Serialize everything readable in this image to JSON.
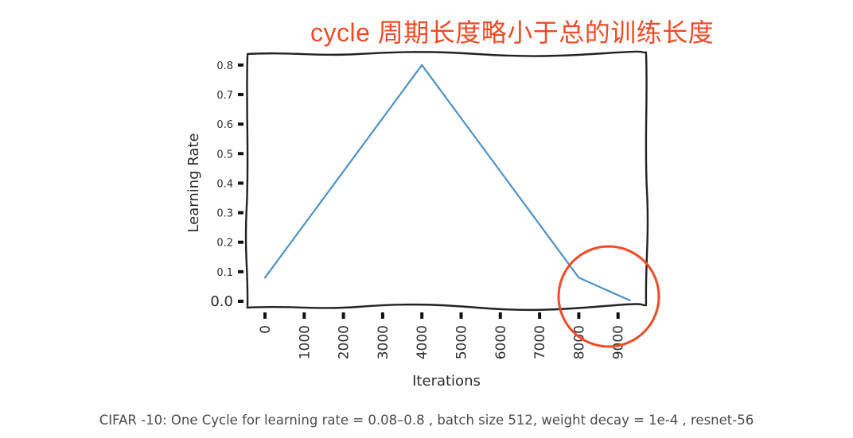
{
  "annotation": {
    "title": "cycle 周期长度略小于总的训练长度",
    "color": "#ee4b26",
    "highlight": "tail-end annealing region (8000–9300 iterations)"
  },
  "caption": "CIFAR -10: One Cycle for learning rate = 0.08–0.8 , batch size 512, weight decay = 1e-4 , resnet-56",
  "chart_data": {
    "type": "line",
    "title": "",
    "xlabel": "Iterations",
    "ylabel": "Learning Rate",
    "xlim": [
      -200,
      9500
    ],
    "ylim": [
      0.0,
      0.8
    ],
    "grid": false,
    "legend": null,
    "x_ticks": [
      0,
      1000,
      2000,
      3000,
      4000,
      5000,
      6000,
      7000,
      8000,
      9000
    ],
    "x_tick_labels": [
      "0",
      "1000",
      "2000",
      "3000",
      "4000",
      "5000",
      "6000",
      "7000",
      "8000",
      "9000"
    ],
    "y_ticks": [
      0.0,
      0.1,
      0.2,
      0.3,
      0.4,
      0.5,
      0.6,
      0.7,
      0.8
    ],
    "y_tick_labels": [
      "0.0",
      "0.1",
      "0.2",
      "0.3",
      "0.4",
      "0.5",
      "0.6",
      "0.7",
      "0.8"
    ],
    "series": [
      {
        "name": "Learning Rate",
        "color": "#4c92c3",
        "x": [
          0,
          4000,
          8000,
          9300
        ],
        "y": [
          0.08,
          0.8,
          0.08,
          0.003
        ]
      }
    ],
    "annotations": [
      {
        "type": "circle",
        "center_x": 8700,
        "center_y": 0.02,
        "color": "#ee4b26",
        "note": "final annealing phase below initial LR"
      }
    ],
    "style": "xkcd hand-drawn"
  }
}
